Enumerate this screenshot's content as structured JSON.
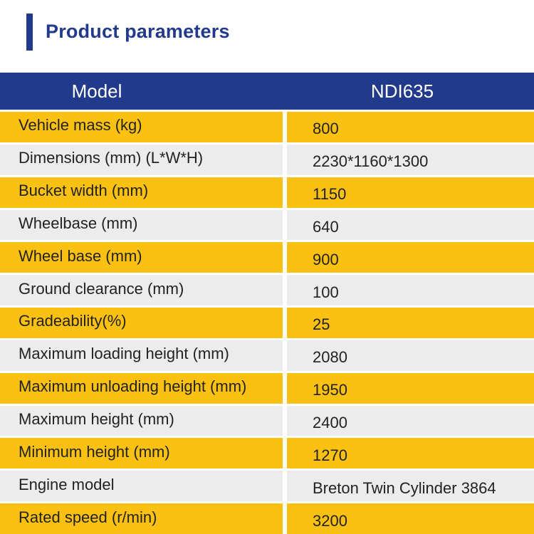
{
  "title": "Product parameters",
  "colors": {
    "accent_blue": "#223a8c",
    "row_yellow": "#fbc112",
    "row_gray": "#ececec"
  },
  "table": {
    "header": {
      "label": "Model",
      "value": "NDI635"
    },
    "rows": [
      {
        "label": "Vehicle mass (kg)",
        "value": "800",
        "style": "yellow"
      },
      {
        "label": "Dimensions (mm) (L*W*H)",
        "value": "2230*1160*1300",
        "style": "gray"
      },
      {
        "label": "Bucket width (mm)",
        "value": "1150",
        "style": "yellow"
      },
      {
        "label": "Wheelbase (mm)",
        "value": "640",
        "style": "gray"
      },
      {
        "label": "Wheel base (mm)",
        "value": "900",
        "style": "yellow"
      },
      {
        "label": "Ground clearance (mm)",
        "value": "100",
        "style": "gray"
      },
      {
        "label": "Gradeability(%)",
        "value": "25",
        "style": "yellow"
      },
      {
        "label": "Maximum loading height (mm)",
        "value": "2080",
        "style": "gray"
      },
      {
        "label": "Maximum unloading height (mm)",
        "value": "1950",
        "style": "yellow"
      },
      {
        "label": "Maximum height (mm)",
        "value": "2400",
        "style": "gray"
      },
      {
        "label": "Minimum height (mm)",
        "value": "1270",
        "style": "yellow"
      },
      {
        "label": "Engine model",
        "value": "Breton Twin Cylinder 3864",
        "style": "gray"
      },
      {
        "label": "Rated speed (r/min)",
        "value": "3200",
        "style": "yellow"
      }
    ]
  }
}
